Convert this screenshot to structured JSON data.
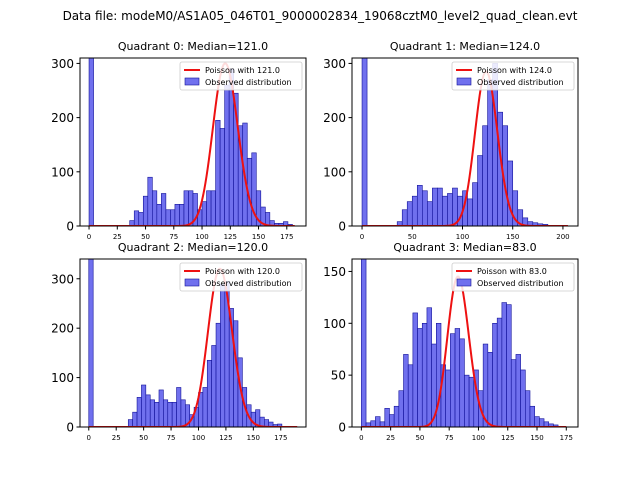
{
  "figure": {
    "title": "Data file: modeM0/AS1A05_046T01_9000002834_19068cztM0_level2_quad_clean.evt"
  },
  "chart_data": [
    {
      "type": "bar",
      "title": "Quadrant 0: Median=121.0",
      "xlim": [
        -8,
        192
      ],
      "ylim": [
        0,
        310
      ],
      "xticks": [
        0,
        25,
        50,
        75,
        100,
        125,
        150,
        175
      ],
      "yticks": [
        0,
        100,
        200,
        300
      ],
      "bin_width": 4,
      "legend": {
        "line": "Poisson with 121.0",
        "bars": "Observed distribution",
        "position": "upper right"
      },
      "fit": {
        "type": "poisson",
        "mu": 121.0,
        "peak": 300,
        "x_range": [
          0,
          182
        ]
      },
      "bars": [
        {
          "x": 0,
          "y": 310
        },
        {
          "x": 36,
          "y": 10
        },
        {
          "x": 40,
          "y": 28
        },
        {
          "x": 44,
          "y": 25
        },
        {
          "x": 48,
          "y": 55
        },
        {
          "x": 52,
          "y": 90
        },
        {
          "x": 56,
          "y": 65
        },
        {
          "x": 60,
          "y": 40
        },
        {
          "x": 64,
          "y": 60
        },
        {
          "x": 68,
          "y": 30
        },
        {
          "x": 72,
          "y": 30
        },
        {
          "x": 76,
          "y": 40
        },
        {
          "x": 80,
          "y": 40
        },
        {
          "x": 84,
          "y": 65
        },
        {
          "x": 88,
          "y": 65
        },
        {
          "x": 92,
          "y": 60
        },
        {
          "x": 96,
          "y": 30
        },
        {
          "x": 100,
          "y": 45
        },
        {
          "x": 104,
          "y": 65
        },
        {
          "x": 108,
          "y": 65
        },
        {
          "x": 112,
          "y": 195
        },
        {
          "x": 116,
          "y": 180
        },
        {
          "x": 120,
          "y": 260
        },
        {
          "x": 124,
          "y": 290
        },
        {
          "x": 128,
          "y": 245
        },
        {
          "x": 132,
          "y": 185
        },
        {
          "x": 136,
          "y": 190
        },
        {
          "x": 140,
          "y": 125
        },
        {
          "x": 144,
          "y": 135
        },
        {
          "x": 148,
          "y": 65
        },
        {
          "x": 152,
          "y": 35
        },
        {
          "x": 156,
          "y": 25
        },
        {
          "x": 160,
          "y": 10
        },
        {
          "x": 164,
          "y": 5
        },
        {
          "x": 168,
          "y": 5
        },
        {
          "x": 172,
          "y": 8
        },
        {
          "x": 176,
          "y": 3
        }
      ]
    },
    {
      "type": "bar",
      "title": "Quadrant 1: Median=124.0",
      "xlim": [
        -10,
        215
      ],
      "ylim": [
        0,
        310
      ],
      "xticks": [
        0,
        50,
        100,
        150,
        200
      ],
      "yticks": [
        0,
        100,
        200,
        300
      ],
      "bin_width": 5,
      "legend": {
        "line": "Poisson with 124.0",
        "bars": "Observed distribution",
        "position": "upper right"
      },
      "fit": {
        "type": "poisson",
        "mu": 124.0,
        "peak": 285,
        "x_range": [
          0,
          205
        ]
      },
      "bars": [
        {
          "x": 0,
          "y": 310
        },
        {
          "x": 35,
          "y": 8
        },
        {
          "x": 40,
          "y": 30
        },
        {
          "x": 45,
          "y": 45
        },
        {
          "x": 50,
          "y": 55
        },
        {
          "x": 55,
          "y": 75
        },
        {
          "x": 60,
          "y": 65
        },
        {
          "x": 65,
          "y": 45
        },
        {
          "x": 70,
          "y": 70
        },
        {
          "x": 75,
          "y": 70
        },
        {
          "x": 80,
          "y": 55
        },
        {
          "x": 85,
          "y": 60
        },
        {
          "x": 90,
          "y": 70
        },
        {
          "x": 95,
          "y": 55
        },
        {
          "x": 100,
          "y": 65
        },
        {
          "x": 105,
          "y": 50
        },
        {
          "x": 110,
          "y": 80
        },
        {
          "x": 115,
          "y": 130
        },
        {
          "x": 120,
          "y": 185
        },
        {
          "x": 125,
          "y": 270
        },
        {
          "x": 130,
          "y": 300
        },
        {
          "x": 135,
          "y": 210
        },
        {
          "x": 140,
          "y": 185
        },
        {
          "x": 145,
          "y": 120
        },
        {
          "x": 150,
          "y": 65
        },
        {
          "x": 155,
          "y": 30
        },
        {
          "x": 160,
          "y": 15
        },
        {
          "x": 165,
          "y": 8
        },
        {
          "x": 170,
          "y": 6
        },
        {
          "x": 175,
          "y": 4
        },
        {
          "x": 180,
          "y": 3
        }
      ]
    },
    {
      "type": "bar",
      "title": "Quadrant 2: Median=120.0",
      "xlim": [
        -8,
        198
      ],
      "ylim": [
        0,
        340
      ],
      "xticks": [
        0,
        25,
        50,
        75,
        100,
        125,
        150,
        175
      ],
      "yticks": [
        0,
        100,
        200,
        300
      ],
      "bin_width": 4,
      "legend": {
        "line": "Poisson with 120.0",
        "bars": "Observed distribution",
        "position": "upper right"
      },
      "fit": {
        "type": "poisson",
        "mu": 120.0,
        "peak": 320,
        "x_range": [
          0,
          190
        ]
      },
      "bars": [
        {
          "x": 0,
          "y": 340
        },
        {
          "x": 36,
          "y": 15
        },
        {
          "x": 40,
          "y": 30
        },
        {
          "x": 44,
          "y": 60
        },
        {
          "x": 48,
          "y": 85
        },
        {
          "x": 52,
          "y": 65
        },
        {
          "x": 56,
          "y": 55
        },
        {
          "x": 60,
          "y": 50
        },
        {
          "x": 64,
          "y": 75
        },
        {
          "x": 68,
          "y": 55
        },
        {
          "x": 72,
          "y": 50
        },
        {
          "x": 76,
          "y": 50
        },
        {
          "x": 80,
          "y": 80
        },
        {
          "x": 84,
          "y": 55
        },
        {
          "x": 88,
          "y": 45
        },
        {
          "x": 92,
          "y": 25
        },
        {
          "x": 96,
          "y": 40
        },
        {
          "x": 100,
          "y": 70
        },
        {
          "x": 104,
          "y": 80
        },
        {
          "x": 108,
          "y": 135
        },
        {
          "x": 112,
          "y": 165
        },
        {
          "x": 116,
          "y": 210
        },
        {
          "x": 120,
          "y": 290
        },
        {
          "x": 124,
          "y": 295
        },
        {
          "x": 128,
          "y": 240
        },
        {
          "x": 132,
          "y": 215
        },
        {
          "x": 136,
          "y": 140
        },
        {
          "x": 140,
          "y": 80
        },
        {
          "x": 144,
          "y": 45
        },
        {
          "x": 148,
          "y": 30
        },
        {
          "x": 152,
          "y": 35
        },
        {
          "x": 156,
          "y": 20
        },
        {
          "x": 160,
          "y": 15
        },
        {
          "x": 164,
          "y": 10
        },
        {
          "x": 168,
          "y": 5
        },
        {
          "x": 172,
          "y": 6
        }
      ]
    },
    {
      "type": "bar",
      "title": "Quadrant 3: Median=83.0",
      "xlim": [
        -8,
        185
      ],
      "ylim": [
        0,
        162
      ],
      "xticks": [
        0,
        25,
        50,
        75,
        100,
        125,
        150,
        175
      ],
      "yticks": [
        0,
        50,
        100,
        150
      ],
      "bin_width": 4,
      "legend": {
        "line": "Poisson with 83.0",
        "bars": "Observed distribution",
        "position": "upper right"
      },
      "fit": {
        "type": "poisson",
        "mu": 83.0,
        "peak": 145,
        "x_range": [
          0,
          175
        ]
      },
      "bars": [
        {
          "x": 0,
          "y": 162
        },
        {
          "x": 4,
          "y": 4
        },
        {
          "x": 8,
          "y": 6
        },
        {
          "x": 12,
          "y": 10
        },
        {
          "x": 16,
          "y": 5
        },
        {
          "x": 20,
          "y": 18
        },
        {
          "x": 24,
          "y": 12
        },
        {
          "x": 28,
          "y": 20
        },
        {
          "x": 32,
          "y": 35
        },
        {
          "x": 36,
          "y": 70
        },
        {
          "x": 40,
          "y": 60
        },
        {
          "x": 44,
          "y": 110
        },
        {
          "x": 48,
          "y": 95
        },
        {
          "x": 52,
          "y": 100
        },
        {
          "x": 56,
          "y": 115
        },
        {
          "x": 60,
          "y": 80
        },
        {
          "x": 64,
          "y": 100
        },
        {
          "x": 68,
          "y": 60
        },
        {
          "x": 72,
          "y": 55
        },
        {
          "x": 76,
          "y": 90
        },
        {
          "x": 80,
          "y": 95
        },
        {
          "x": 84,
          "y": 85
        },
        {
          "x": 88,
          "y": 50
        },
        {
          "x": 92,
          "y": 48
        },
        {
          "x": 96,
          "y": 55
        },
        {
          "x": 100,
          "y": 35
        },
        {
          "x": 104,
          "y": 80
        },
        {
          "x": 108,
          "y": 72
        },
        {
          "x": 112,
          "y": 100
        },
        {
          "x": 116,
          "y": 105
        },
        {
          "x": 120,
          "y": 120
        },
        {
          "x": 124,
          "y": 118
        },
        {
          "x": 128,
          "y": 65
        },
        {
          "x": 132,
          "y": 70
        },
        {
          "x": 136,
          "y": 55
        },
        {
          "x": 140,
          "y": 35
        },
        {
          "x": 144,
          "y": 20
        },
        {
          "x": 148,
          "y": 10
        },
        {
          "x": 152,
          "y": 8
        },
        {
          "x": 156,
          "y": 5
        },
        {
          "x": 160,
          "y": 3
        },
        {
          "x": 164,
          "y": 2
        }
      ]
    }
  ]
}
